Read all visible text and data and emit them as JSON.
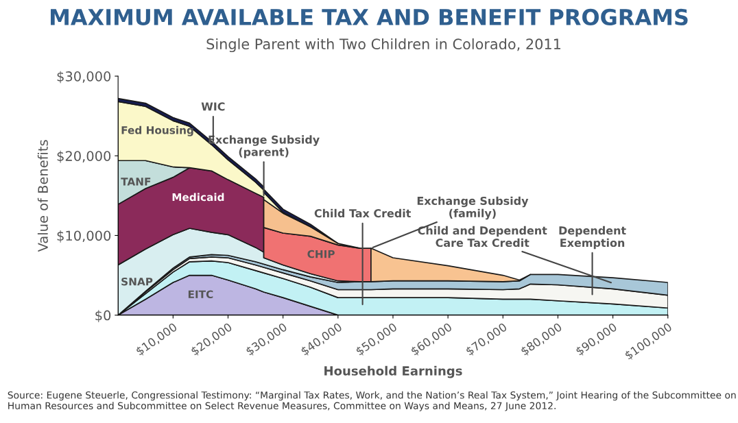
{
  "chart_data": {
    "type": "area",
    "stacked": true,
    "title": "MAXIMUM AVAILABLE TAX AND BENEFIT PROGRAMS",
    "subtitle": "Single Parent with Two Children in Colorado, 2011",
    "xlabel": "Household Earnings",
    "ylabel": "Value of Benefits",
    "annotations": [
      "Source: Eugene Steuerle, Congressional Testimony: “Marginal Tax Rates, Work, and the Nation’s Real Tax System,” Joint Hearing of the Subcommittee on Human Resources and Subcommittee on Select Revenue Measures, Committee on Ways and Means, 27 June 2012."
    ],
    "x": [
      0,
      5000,
      10000,
      13000,
      17000,
      20000,
      25000,
      26500,
      26500,
      30000,
      35000,
      40000,
      44000,
      46000,
      46000,
      50000,
      60000,
      70000,
      73000,
      75000,
      80000,
      90000,
      100000
    ],
    "xlim": [
      0,
      100000
    ],
    "xticks": [
      {
        "value": 10000,
        "label": "$10,000"
      },
      {
        "value": 20000,
        "label": "$20,000"
      },
      {
        "value": 30000,
        "label": "$30,000"
      },
      {
        "value": 40000,
        "label": "$40,000"
      },
      {
        "value": 50000,
        "label": "$50,000"
      },
      {
        "value": 60000,
        "label": "$60,000"
      },
      {
        "value": 70000,
        "label": "$70,000"
      },
      {
        "value": 80000,
        "label": "$80,000"
      },
      {
        "value": 90000,
        "label": "$90,000"
      },
      {
        "value": 100000,
        "label": "$100,000"
      }
    ],
    "ylim": [
      0,
      30000
    ],
    "yticks": [
      {
        "value": 0,
        "label": "$0"
      },
      {
        "value": 10000,
        "label": "$10,000"
      },
      {
        "value": 20000,
        "label": "$20,000"
      },
      {
        "value": 30000,
        "label": "$30,000"
      }
    ],
    "series": [
      {
        "name": "EITC",
        "color": "#bdb6e2",
        "values": [
          0,
          2000,
          4100,
          5000,
          5000,
          4400,
          3300,
          2900,
          2900,
          2200,
          1100,
          0,
          null,
          null,
          null,
          null,
          null,
          null,
          null,
          null,
          null,
          null,
          null
        ]
      },
      {
        "name": "Child Tax Credit",
        "color": "#c2f1f4",
        "values": [
          0,
          700,
          1300,
          1700,
          1800,
          2200,
          2300,
          2400,
          2400,
          2400,
          2400,
          2200,
          2200,
          2200,
          2200,
          2200,
          2200,
          2000,
          2000,
          2000,
          1800,
          1400,
          900
        ]
      },
      {
        "name": "Dependent Exemption",
        "color": "#f6f6f2",
        "values": [
          0,
          200,
          300,
          400,
          500,
          600,
          700,
          700,
          700,
          700,
          800,
          1000,
          1000,
          1000,
          1000,
          1100,
          1100,
          1200,
          1300,
          1900,
          2000,
          1900,
          1600
        ]
      },
      {
        "name": "Child and Dependent Care Tax Credit",
        "color": "#a8c7d8",
        "values": [
          0,
          100,
          200,
          200,
          300,
          300,
          400,
          400,
          400,
          400,
          500,
          900,
          1000,
          1000,
          1000,
          1000,
          1000,
          1000,
          1000,
          1200,
          1300,
          1400,
          1600
        ]
      },
      {
        "name": "SNAP",
        "color": "#d8eef0",
        "values": [
          6300,
          5300,
          4200,
          3600,
          2800,
          2600,
          1800,
          1500,
          800,
          600,
          400,
          200,
          0,
          null,
          null,
          null,
          null,
          null,
          null,
          null,
          null,
          null,
          null
        ]
      },
      {
        "name": "Medicaid",
        "color": "#8b2a5a",
        "values": [
          7600,
          7600,
          7200,
          7600,
          7700,
          6900,
          6800,
          6900,
          null,
          null,
          null,
          null,
          null,
          null,
          null,
          null,
          null,
          null,
          null,
          null,
          null,
          null,
          null
        ]
      },
      {
        "name": "CHIP",
        "color": "#f07272",
        "values": [
          null,
          null,
          null,
          null,
          null,
          null,
          null,
          null,
          3800,
          4000,
          4700,
          4500,
          4200,
          4200,
          null,
          null,
          null,
          null,
          null,
          null,
          null,
          null,
          null
        ]
      },
      {
        "name": "TANF",
        "color": "#c3dedb",
        "values": [
          5500,
          3500,
          1300,
          0,
          null,
          null,
          null,
          null,
          null,
          null,
          null,
          null,
          null,
          null,
          null,
          null,
          null,
          null,
          null,
          null,
          null,
          null,
          null
        ]
      },
      {
        "name": "Exchange Subsidy (family)",
        "color": "#f8c391",
        "values": [
          null,
          null,
          null,
          null,
          null,
          null,
          null,
          null,
          null,
          null,
          null,
          null,
          null,
          null,
          4200,
          2900,
          1900,
          800,
          100,
          0,
          null,
          null,
          null
        ]
      },
      {
        "name": "Exchange Subsidy (parent)",
        "color": "#f6c08e",
        "values": [
          null,
          null,
          null,
          null,
          null,
          null,
          null,
          null,
          3500,
          2500,
          1200,
          200,
          0,
          null,
          null,
          null,
          null,
          null,
          null,
          null,
          null,
          null,
          null
        ]
      },
      {
        "name": "Fed Housing",
        "color": "#fbf8c9",
        "values": [
          7400,
          6800,
          5800,
          5200,
          3300,
          2500,
          1400,
          900,
          900,
          100,
          0,
          null,
          null,
          null,
          null,
          null,
          null,
          null,
          null,
          null,
          null,
          null,
          null
        ]
      },
      {
        "name": "WIC",
        "color": "#161c4f",
        "values": [
          400,
          400,
          400,
          400,
          400,
          400,
          400,
          400,
          400,
          400,
          300,
          0,
          null,
          null,
          null,
          null,
          null,
          null,
          null,
          null,
          null,
          null,
          null
        ]
      }
    ]
  }
}
